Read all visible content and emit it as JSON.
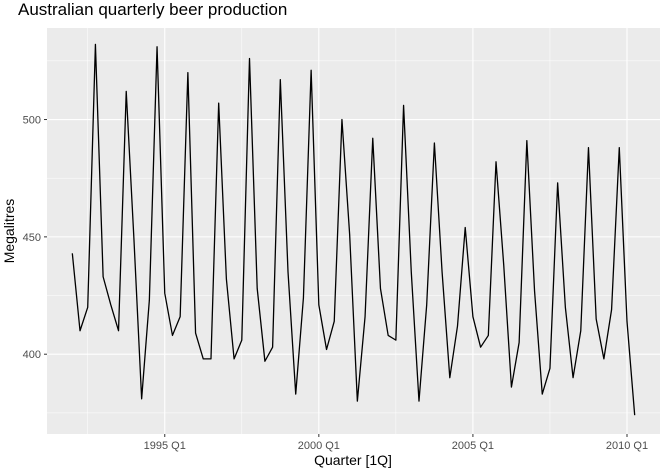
{
  "chart_data": {
    "type": "line",
    "title": "Australian quarterly beer production",
    "xlabel": "Quarter [1Q]",
    "ylabel": "Megalitres",
    "x_start": "1992 Q1",
    "x_end": "2010 Q2",
    "x_ticks": [
      "1995 Q1",
      "2000 Q1",
      "2005 Q1",
      "2010 Q1"
    ],
    "y_ticks": [
      400,
      450,
      500
    ],
    "ylim": [
      366,
      539
    ],
    "grid": true,
    "series": [
      {
        "values": [
          443,
          410,
          420,
          532,
          433,
          421,
          410,
          512,
          449,
          381,
          423,
          531,
          426,
          408,
          416,
          520,
          409,
          398,
          398,
          507,
          432,
          398,
          406,
          526,
          428,
          397,
          403,
          517,
          435,
          383,
          424,
          521,
          421,
          402,
          414,
          500,
          451,
          380,
          416,
          492,
          428,
          408,
          406,
          506,
          435,
          380,
          421,
          490,
          435,
          390,
          412,
          454,
          416,
          403,
          408,
          482,
          438,
          386,
          405,
          491,
          427,
          383,
          394,
          473,
          420,
          390,
          410,
          488,
          415,
          398,
          419,
          488,
          414,
          374
        ]
      }
    ]
  }
}
